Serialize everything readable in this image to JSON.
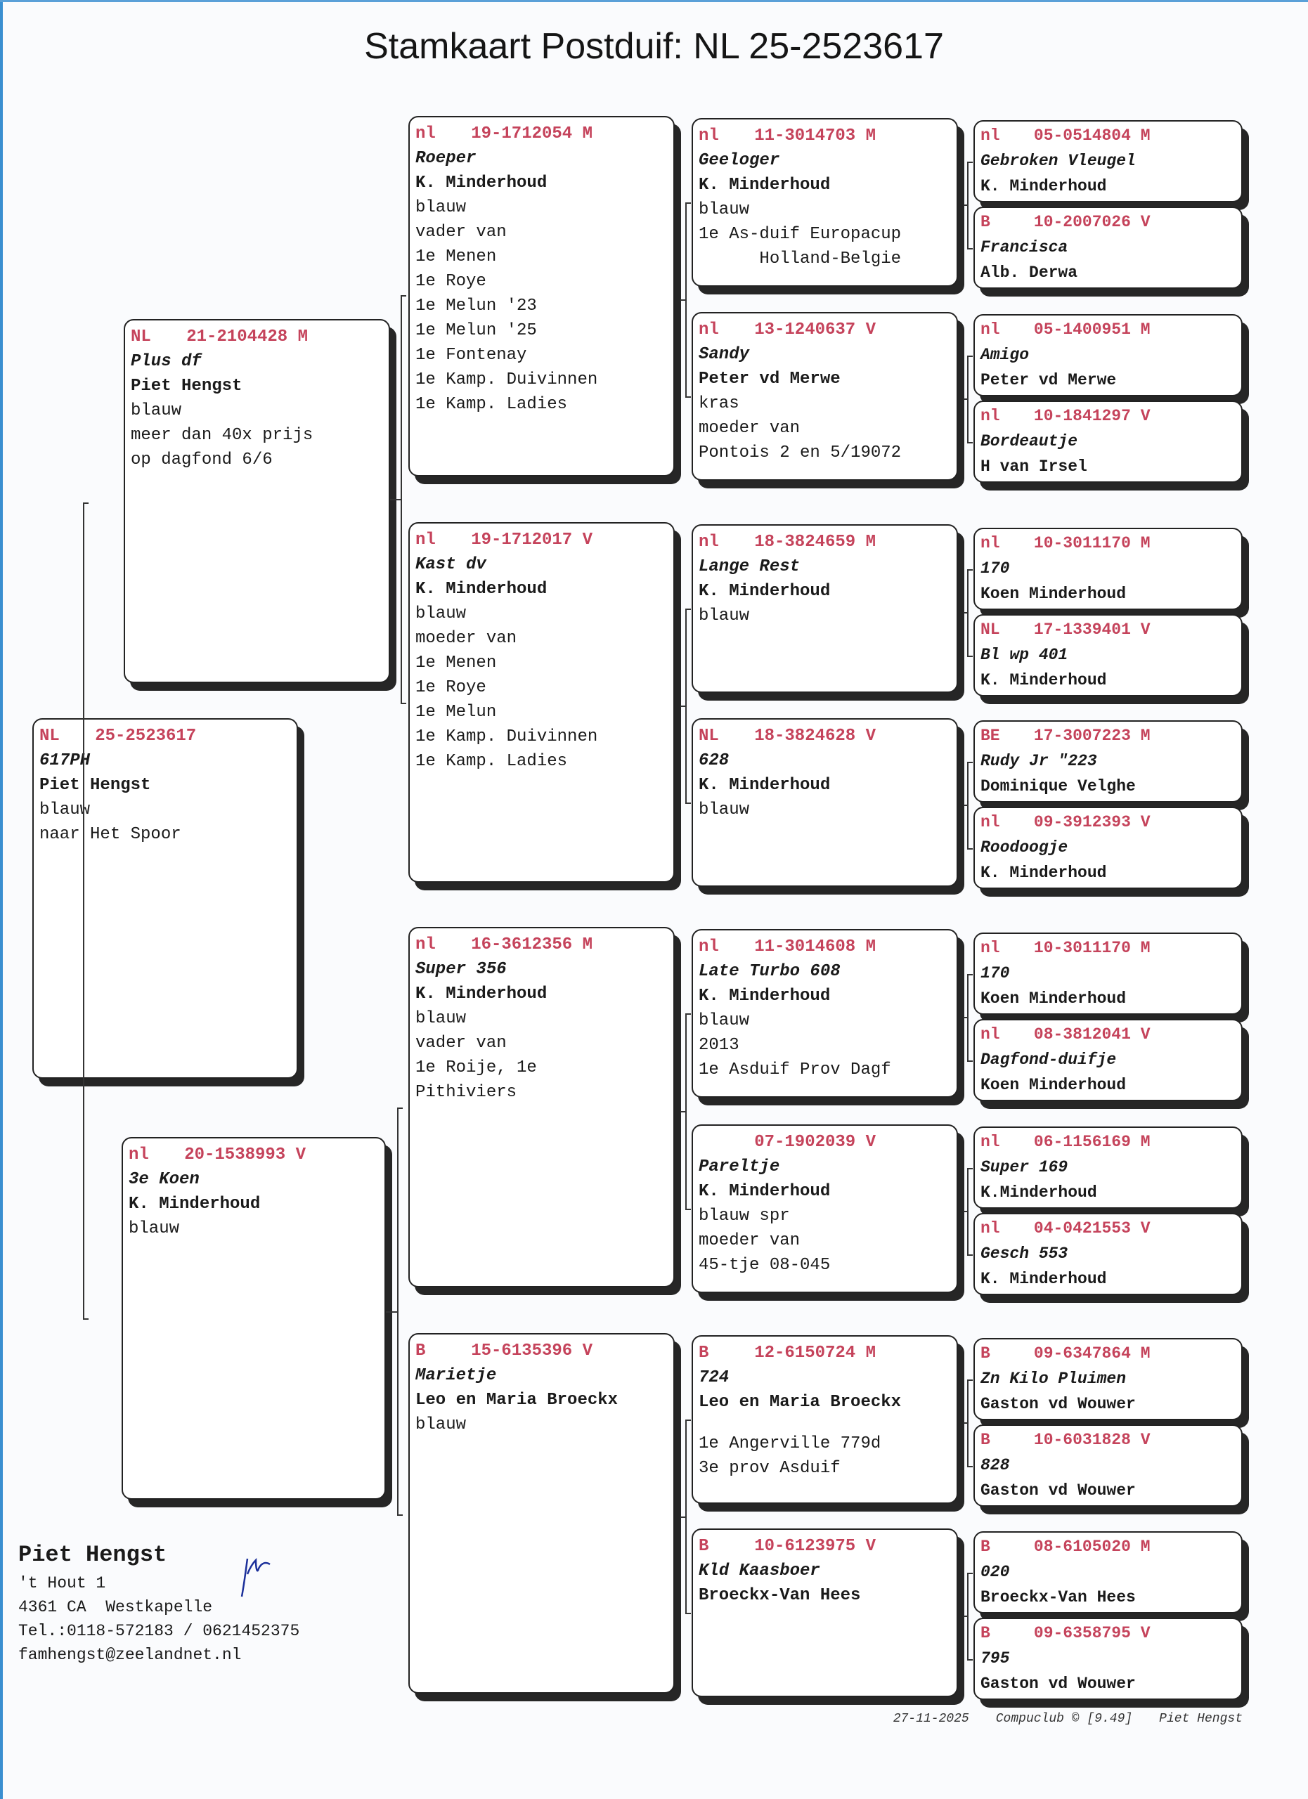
{
  "title": "Stamkaart Postduif: NL  25-2523617",
  "colors": {
    "ring_header": "#c5435b",
    "text": "#1a1a1a",
    "shadow": "#262626"
  },
  "pigeons": [
    {
      "role": "subject",
      "country": "NL",
      "ring": "25-2523617",
      "sex": "",
      "name": "617PH",
      "breeder": "Piet Hengst",
      "lines": [
        "blauw",
        "naar Het Spoor"
      ]
    },
    {
      "role": "sire",
      "country": "NL",
      "ring": "21-2104428",
      "sex": "M",
      "name": "Plus df",
      "breeder": "Piet Hengst",
      "lines": [
        "blauw",
        "meer dan 40x prijs",
        "op dagfond 6/6"
      ]
    },
    {
      "role": "dam",
      "country": "nl",
      "ring": "20-1538993",
      "sex": "V",
      "name": "3e Koen",
      "breeder": "K. Minderhoud",
      "lines": [
        "blauw"
      ]
    },
    {
      "role": "grandparent",
      "country": "nl",
      "ring": "19-1712054",
      "sex": "M",
      "name": "Roeper",
      "breeder": "K. Minderhoud",
      "lines": [
        "blauw",
        "vader van",
        "1e Menen",
        "1e Roye",
        "1e Melun '23",
        "1e Melun '25",
        "1e Fontenay",
        "1e Kamp. Duivinnen",
        "1e Kamp. Ladies"
      ]
    },
    {
      "role": "grandparent",
      "country": "nl",
      "ring": "19-1712017",
      "sex": "V",
      "name": "Kast dv",
      "breeder": "K. Minderhoud",
      "lines": [
        "blauw",
        "moeder van",
        "1e Menen",
        "1e Roye",
        "1e Melun",
        "1e Kamp. Duivinnen",
        "1e Kamp. Ladies"
      ]
    },
    {
      "role": "grandparent",
      "country": "nl",
      "ring": "16-3612356",
      "sex": "M",
      "name": "Super 356",
      "breeder": "K. Minderhoud",
      "lines": [
        "blauw",
        "vader van",
        "1e Roije, 1e",
        "Pithiviers"
      ]
    },
    {
      "role": "grandparent",
      "country": "B",
      "ring": "15-6135396",
      "sex": "V",
      "name": "Marietje",
      "breeder": "Leo en Maria Broeckx",
      "lines": [
        "blauw"
      ]
    },
    {
      "role": "great-grandparent",
      "country": "nl",
      "ring": "11-3014703",
      "sex": "M",
      "name": "Geeloger",
      "breeder": "K. Minderhoud",
      "lines": [
        "blauw",
        "1e As-duif Europacup",
        "      Holland-Belgie"
      ]
    },
    {
      "role": "great-grandparent",
      "country": "nl",
      "ring": "13-1240637",
      "sex": "V",
      "name": "Sandy",
      "breeder": "Peter vd Merwe",
      "lines": [
        "kras",
        "moeder van",
        "Pontois 2 en 5/19072"
      ]
    },
    {
      "role": "great-grandparent",
      "country": "nl",
      "ring": "18-3824659",
      "sex": "M",
      "name": "Lange Rest",
      "breeder": "K. Minderhoud",
      "lines": [
        "blauw"
      ]
    },
    {
      "role": "great-grandparent",
      "country": "NL",
      "ring": "18-3824628",
      "sex": "V",
      "name": "628",
      "breeder": "K. Minderhoud",
      "lines": [
        "blauw"
      ]
    },
    {
      "role": "great-grandparent",
      "country": "nl",
      "ring": "11-3014608",
      "sex": "M",
      "name": "Late Turbo 608",
      "breeder": "K. Minderhoud",
      "lines": [
        "blauw",
        "2013",
        "1e Asduif Prov Dagf"
      ]
    },
    {
      "role": "great-grandparent",
      "country": "",
      "ring": "07-1902039",
      "sex": "V",
      "name": "Pareltje",
      "breeder": "K. Minderhoud",
      "lines": [
        "blauw spr",
        "moeder van",
        "45-tje 08-045"
      ]
    },
    {
      "role": "great-grandparent",
      "country": "B",
      "ring": "12-6150724",
      "sex": "M",
      "name": "724",
      "breeder": "Leo en Maria Broeckx",
      "lines": [
        "",
        "1e Angerville 779d",
        "3e prov Asduif"
      ]
    },
    {
      "role": "great-grandparent",
      "country": "B",
      "ring": "10-6123975",
      "sex": "V",
      "name": "Kld Kaasboer",
      "breeder": "Broeckx-Van Hees",
      "lines": []
    },
    {
      "role": "g-great-grandparent",
      "country": "nl",
      "ring": "05-0514804",
      "sex": "M",
      "name": "Gebroken Vleugel",
      "breeder": "K. Minderhoud",
      "lines": []
    },
    {
      "role": "g-great-grandparent",
      "country": "B",
      "ring": "10-2007026",
      "sex": "V",
      "name": "Francisca",
      "breeder": "Alb. Derwa",
      "lines": []
    },
    {
      "role": "g-great-grandparent",
      "country": "nl",
      "ring": "05-1400951",
      "sex": "M",
      "name": "Amigo",
      "breeder": "Peter vd Merwe",
      "lines": []
    },
    {
      "role": "g-great-grandparent",
      "country": "nl",
      "ring": "10-1841297",
      "sex": "V",
      "name": "Bordeautje",
      "breeder": "H van Irsel",
      "lines": []
    },
    {
      "role": "g-great-grandparent",
      "country": "nl",
      "ring": "10-3011170",
      "sex": "M",
      "name": "170",
      "breeder": "Koen Minderhoud",
      "lines": []
    },
    {
      "role": "g-great-grandparent",
      "country": "NL",
      "ring": "17-1339401",
      "sex": "V",
      "name": "Bl wp 401",
      "breeder": "K. Minderhoud",
      "lines": []
    },
    {
      "role": "g-great-grandparent",
      "country": "BE",
      "ring": "17-3007223",
      "sex": "M",
      "name": "Rudy Jr \"223",
      "breeder": "Dominique Velghe",
      "lines": []
    },
    {
      "role": "g-great-grandparent",
      "country": "nl",
      "ring": "09-3912393",
      "sex": "V",
      "name": "Roodoogje",
      "breeder": "K. Minderhoud",
      "lines": []
    },
    {
      "role": "g-great-grandparent",
      "country": "nl",
      "ring": "10-3011170",
      "sex": "M",
      "name": "170",
      "breeder": "Koen Minderhoud",
      "lines": []
    },
    {
      "role": "g-great-grandparent",
      "country": "nl",
      "ring": "08-3812041",
      "sex": "V",
      "name": "Dagfond-duifje",
      "breeder": "Koen Minderhoud",
      "lines": []
    },
    {
      "role": "g-great-grandparent",
      "country": "nl",
      "ring": "06-1156169",
      "sex": "M",
      "name": "Super 169",
      "breeder": "K.Minderhoud",
      "lines": []
    },
    {
      "role": "g-great-grandparent",
      "country": "nl",
      "ring": "04-0421553",
      "sex": "V",
      "name": "Gesch 553",
      "breeder": "K. Minderhoud",
      "lines": []
    },
    {
      "role": "g-great-grandparent",
      "country": "B",
      "ring": "09-6347864",
      "sex": "M",
      "name": "Zn Kilo Pluimen",
      "breeder": "Gaston vd Wouwer",
      "lines": []
    },
    {
      "role": "g-great-grandparent",
      "country": "B",
      "ring": "10-6031828",
      "sex": "V",
      "name": "828",
      "breeder": "Gaston vd Wouwer",
      "lines": []
    },
    {
      "role": "g-great-grandparent",
      "country": "B",
      "ring": "08-6105020",
      "sex": "M",
      "name": "020",
      "breeder": "Broeckx-Van Hees",
      "lines": []
    },
    {
      "role": "g-great-grandparent",
      "country": "B",
      "ring": "09-6358795",
      "sex": "V",
      "name": "795",
      "breeder": "Gaston vd Wouwer",
      "lines": []
    }
  ],
  "breeder": {
    "name": "Piet Hengst",
    "address": "'t Hout 1",
    "city": "4361 CA  Westkapelle",
    "phone": "Tel.:0118-572183 / 0621452375",
    "email": "famhengst@zeelandnet.nl",
    "signature": "handwritten signature"
  },
  "footer": {
    "date": "27-11-2025",
    "software": "Compuclub © [9.49]",
    "owner": "Piet Hengst"
  }
}
